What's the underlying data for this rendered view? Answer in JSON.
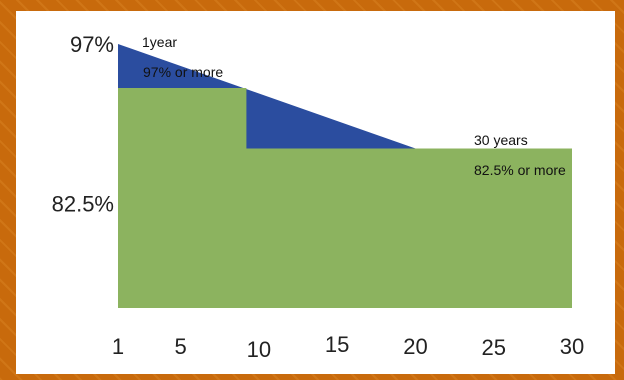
{
  "chart_data": {
    "type": "area",
    "x_ticks": [
      "1",
      "5",
      "10",
      "15",
      "20",
      "25",
      "30"
    ],
    "xlim": [
      1,
      30
    ],
    "ylim": [
      73,
      100
    ],
    "y_tick_labels": [
      {
        "value": 97,
        "label": "97%"
      },
      {
        "value": 82.5,
        "label": "82.5%"
      }
    ],
    "series": [
      {
        "color": "#2b4d9f",
        "points": [
          [
            1,
            97
          ],
          [
            30,
            82.5
          ]
        ]
      },
      {
        "color": "#8cb35f",
        "points": [
          [
            1,
            93
          ],
          [
            9.2,
            93
          ],
          [
            9.2,
            87.5
          ],
          [
            30,
            87.5
          ]
        ]
      }
    ],
    "annotations": [
      {
        "lines": [
          "1year",
          "97% or more"
        ],
        "x": 1,
        "y": 97
      },
      {
        "lines": [
          "30 years",
          "82.5% or more"
        ],
        "x": 30,
        "y": 82.5
      }
    ]
  }
}
